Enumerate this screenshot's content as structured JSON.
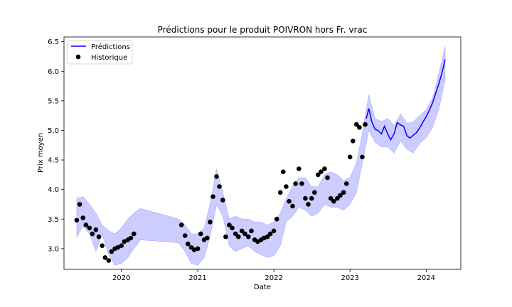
{
  "chart_data": {
    "type": "line",
    "title": "Prédictions pour le produit POIVRON hors Fr. vrac",
    "xlabel": "Date",
    "ylabel": "Prix moyen",
    "xlim": [
      "2019-04-01",
      "2024-06-15"
    ],
    "ylim": [
      2.65,
      6.58
    ],
    "x_ticks": [
      {
        "date": "2020-01-01",
        "label": "2020"
      },
      {
        "date": "2021-01-01",
        "label": "2021"
      },
      {
        "date": "2022-01-01",
        "label": "2022"
      },
      {
        "date": "2023-01-01",
        "label": "2023"
      },
      {
        "date": "2024-01-01",
        "label": "2024"
      }
    ],
    "y_ticks": [
      3.0,
      3.5,
      4.0,
      4.5,
      5.0,
      5.5,
      6.0,
      6.5
    ],
    "y_tick_labels": [
      "3.0",
      "3.5",
      "4.0",
      "4.5",
      "5.0",
      "5.5",
      "6.0",
      "6.5"
    ],
    "grid": false,
    "legend": {
      "position": "top-left",
      "entries": [
        "Prédictions",
        "Historique"
      ]
    },
    "colors": {
      "prediction_line": "#0000ff",
      "band_fill": "#0000ff",
      "history_marker": "#000000"
    },
    "series": [
      {
        "name": "Prédictions",
        "kind": "line",
        "x": [
          "2023-03-20",
          "2023-04-01",
          "2023-04-15",
          "2023-05-01",
          "2023-05-15",
          "2023-06-01",
          "2023-06-15",
          "2023-07-01",
          "2023-07-15",
          "2023-08-01",
          "2023-08-15",
          "2023-09-01",
          "2023-09-15",
          "2023-10-01",
          "2023-10-15",
          "2023-11-01",
          "2023-11-15",
          "2023-12-01",
          "2023-12-15",
          "2024-01-01",
          "2024-01-15",
          "2024-02-01",
          "2024-02-15",
          "2024-03-01",
          "2024-03-15",
          "2024-04-01"
        ],
        "y": [
          5.2,
          5.37,
          5.15,
          5.02,
          5.0,
          4.94,
          5.07,
          4.94,
          4.84,
          4.95,
          5.13,
          5.09,
          5.07,
          4.91,
          4.87,
          4.92,
          4.96,
          5.04,
          5.13,
          5.23,
          5.33,
          5.47,
          5.62,
          5.78,
          5.95,
          6.2
        ]
      },
      {
        "name": "Historique",
        "kind": "scatter",
        "x": [
          "2019-06-01",
          "2019-06-15",
          "2019-07-01",
          "2019-07-15",
          "2019-08-01",
          "2019-08-15",
          "2019-09-01",
          "2019-09-15",
          "2019-10-01",
          "2019-10-15",
          "2019-11-01",
          "2019-11-15",
          "2019-12-01",
          "2019-12-15",
          "2020-01-01",
          "2020-01-15",
          "2020-02-01",
          "2020-02-15",
          "2020-03-01",
          "2020-10-15",
          "2020-11-01",
          "2020-11-15",
          "2020-12-01",
          "2020-12-15",
          "2021-01-01",
          "2021-01-15",
          "2021-02-01",
          "2021-02-15",
          "2021-03-01",
          "2021-03-15",
          "2021-04-01",
          "2021-04-15",
          "2021-05-01",
          "2021-05-15",
          "2021-06-01",
          "2021-06-15",
          "2021-07-01",
          "2021-07-15",
          "2021-08-01",
          "2021-08-15",
          "2021-09-01",
          "2021-09-15",
          "2021-10-01",
          "2021-10-15",
          "2021-11-01",
          "2021-11-15",
          "2021-12-01",
          "2021-12-15",
          "2022-01-01",
          "2022-01-15",
          "2022-02-01",
          "2022-02-15",
          "2022-03-01",
          "2022-03-15",
          "2022-04-01",
          "2022-04-15",
          "2022-05-01",
          "2022-05-15",
          "2022-06-01",
          "2022-06-15",
          "2022-07-01",
          "2022-07-15",
          "2022-08-01",
          "2022-08-15",
          "2022-09-01",
          "2022-09-15",
          "2022-10-01",
          "2022-10-15",
          "2022-11-01",
          "2022-11-15",
          "2022-12-01",
          "2022-12-15",
          "2023-01-01",
          "2023-01-15",
          "2023-02-01",
          "2023-02-15",
          "2023-03-01",
          "2023-03-15"
        ],
        "y": [
          3.48,
          3.75,
          3.52,
          3.4,
          3.35,
          3.25,
          3.32,
          3.2,
          3.05,
          2.85,
          2.8,
          2.95,
          3.0,
          3.02,
          3.05,
          3.12,
          3.15,
          3.18,
          3.25,
          3.4,
          3.22,
          3.08,
          3.02,
          2.98,
          3.0,
          3.25,
          3.15,
          3.18,
          3.45,
          3.88,
          4.22,
          4.05,
          3.82,
          3.2,
          3.4,
          3.35,
          3.25,
          3.2,
          3.3,
          3.25,
          3.2,
          3.3,
          3.15,
          3.12,
          3.15,
          3.18,
          3.2,
          3.25,
          3.3,
          3.5,
          3.95,
          4.3,
          4.05,
          3.8,
          3.72,
          4.1,
          4.35,
          4.1,
          3.85,
          3.75,
          3.85,
          3.95,
          4.25,
          4.3,
          4.35,
          4.2,
          3.85,
          3.8,
          3.85,
          3.9,
          3.95,
          4.1,
          4.55,
          4.82,
          5.1,
          5.05,
          4.55,
          5.1
        ]
      },
      {
        "name": "",
        "kind": "band",
        "x": [
          "2019-06-01",
          "2019-07-01",
          "2019-08-01",
          "2019-09-01",
          "2019-10-01",
          "2019-11-01",
          "2019-12-01",
          "2020-01-01",
          "2020-02-01",
          "2020-03-01",
          "2020-04-01",
          "2020-10-01",
          "2020-11-01",
          "2020-12-01",
          "2021-01-01",
          "2021-02-01",
          "2021-03-01",
          "2021-04-01",
          "2021-05-01",
          "2021-06-01",
          "2021-07-01",
          "2021-08-01",
          "2021-09-01",
          "2021-10-01",
          "2021-11-01",
          "2021-12-01",
          "2022-01-01",
          "2022-02-01",
          "2022-03-01",
          "2022-04-01",
          "2022-05-01",
          "2022-06-01",
          "2022-07-01",
          "2022-08-01",
          "2022-09-01",
          "2022-10-01",
          "2022-11-01",
          "2022-12-01",
          "2023-01-01",
          "2023-02-01",
          "2023-03-01",
          "2023-04-01",
          "2023-05-01",
          "2023-06-01",
          "2023-07-01",
          "2023-08-01",
          "2023-09-01",
          "2023-10-01",
          "2023-11-01",
          "2023-12-01",
          "2024-01-01",
          "2024-02-01",
          "2024-03-01",
          "2024-04-01"
        ],
        "lower": [
          3.2,
          3.38,
          3.25,
          2.95,
          3.25,
          2.9,
          2.72,
          2.75,
          2.85,
          3.0,
          3.15,
          3.1,
          2.95,
          2.75,
          2.72,
          2.85,
          3.2,
          3.75,
          3.55,
          3.05,
          2.95,
          3.0,
          3.05,
          2.95,
          2.9,
          2.85,
          2.88,
          3.05,
          3.45,
          3.55,
          3.7,
          3.65,
          3.55,
          3.6,
          3.75,
          3.7,
          3.7,
          3.65,
          3.75,
          3.95,
          4.45,
          5.0,
          4.8,
          4.72,
          4.72,
          4.62,
          4.82,
          4.68,
          4.62,
          4.78,
          4.88,
          5.05,
          5.35,
          5.85
        ],
        "upper": [
          3.85,
          3.88,
          3.75,
          3.6,
          3.4,
          3.3,
          3.25,
          3.35,
          3.5,
          3.6,
          3.68,
          3.5,
          3.4,
          3.25,
          3.25,
          3.35,
          3.75,
          4.35,
          3.95,
          3.5,
          3.55,
          3.5,
          3.5,
          3.45,
          3.45,
          3.4,
          3.45,
          3.6,
          3.85,
          4.05,
          4.2,
          4.2,
          4.05,
          4.05,
          4.25,
          4.3,
          4.25,
          4.15,
          4.2,
          4.45,
          4.95,
          5.6,
          5.2,
          5.15,
          5.2,
          5.08,
          5.28,
          5.12,
          5.15,
          5.25,
          5.35,
          5.55,
          5.95,
          6.42
        ]
      }
    ]
  }
}
